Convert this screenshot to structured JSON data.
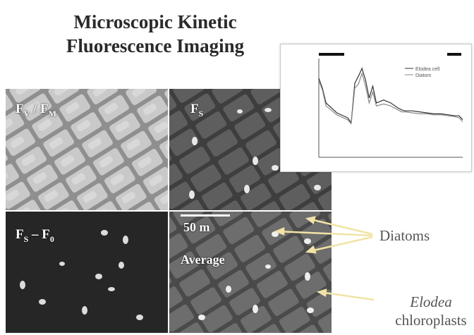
{
  "title": {
    "line1": "Microscopic Kinetic",
    "line2": "Fluorescence Imaging"
  },
  "panels": {
    "p1": {
      "main": "F",
      "sub1": "V",
      "sep": " / F",
      "sub2": "M"
    },
    "p2": {
      "main": "F",
      "sub1": "S"
    },
    "p3": {
      "main": "F",
      "sub1": "S",
      "sep": " – F",
      "sub2": "0"
    },
    "p4": {
      "scale": "50   m",
      "average": "Average"
    }
  },
  "callouts": {
    "diatoms": "Diatoms",
    "elodea_italic": "Elodea",
    "elodea_rest": "chloroplasts"
  },
  "colors": {
    "arrow": "#f1e3a6",
    "inset_line": "#333333"
  },
  "chart_data": {
    "type": "line",
    "series": [
      {
        "name": "Elodea cell",
        "x": [
          0,
          5,
          10,
          25,
          40,
          45,
          50,
          55,
          60,
          65,
          70,
          75,
          80,
          90,
          100,
          110,
          115,
          120,
          130,
          140,
          150,
          160,
          170,
          180,
          190,
          195,
          200
        ],
        "y": [
          80,
          70,
          55,
          45,
          40,
          35,
          75,
          82,
          90,
          78,
          60,
          72,
          55,
          58,
          55,
          50,
          48,
          47,
          47,
          46,
          45,
          44,
          44,
          43,
          42,
          42,
          38
        ]
      },
      {
        "name": "Diatom",
        "x": [
          0,
          5,
          10,
          25,
          40,
          45,
          50,
          55,
          60,
          65,
          70,
          75,
          80,
          90,
          100,
          110,
          115,
          120,
          130,
          140,
          150,
          160,
          170,
          180,
          190,
          195,
          200
        ],
        "y": [
          78,
          68,
          52,
          43,
          38,
          34,
          70,
          74,
          85,
          72,
          55,
          66,
          52,
          54,
          52,
          48,
          46,
          46,
          45,
          44,
          44,
          43,
          43,
          42,
          41,
          40,
          36
        ]
      }
    ],
    "xlim": [
      0,
      200
    ],
    "ylim": [
      0,
      100
    ],
    "legend": "top-right"
  }
}
